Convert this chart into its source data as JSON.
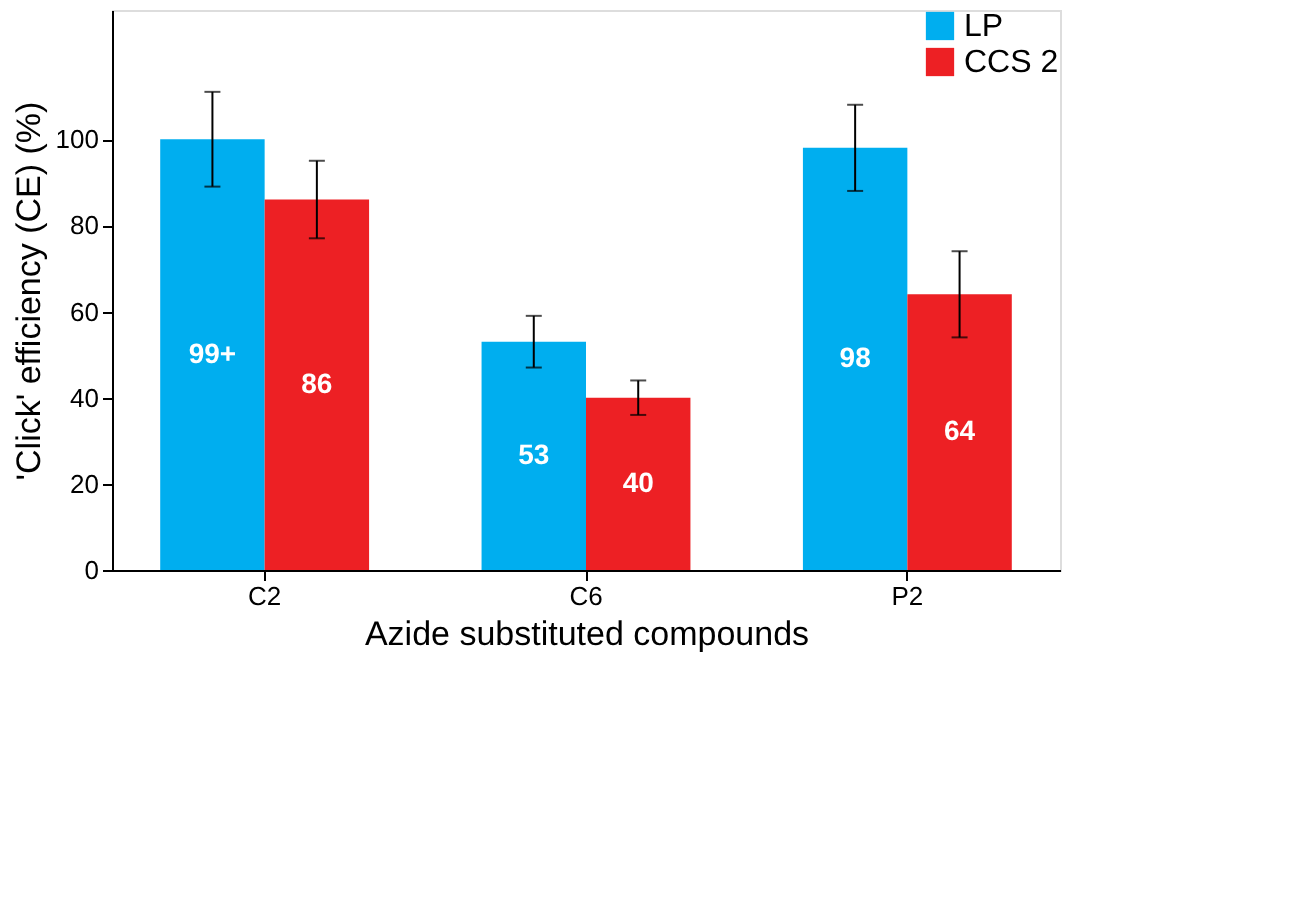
{
  "chart_data": {
    "type": "bar",
    "xlabel": "Azide substituted compounds",
    "ylabel": "'Click' efficiency (CE) (%)",
    "categories": [
      "C2",
      "C6",
      "P2"
    ],
    "series": [
      {
        "name": "LP",
        "color": "#00aeef",
        "values": [
          100,
          53,
          98
        ],
        "errors": [
          11,
          6,
          10
        ],
        "value_labels": [
          "99+",
          "53",
          "98"
        ]
      },
      {
        "name": "CCS 2",
        "color": "#ed2024",
        "values": [
          86,
          40,
          64
        ],
        "errors": [
          9,
          4,
          10
        ],
        "value_labels": [
          "86",
          "40",
          "64"
        ]
      }
    ],
    "ylim": [
      0,
      130
    ],
    "yticks": [
      0,
      20,
      40,
      60,
      80,
      100
    ],
    "grid": false,
    "legend": "top right"
  }
}
